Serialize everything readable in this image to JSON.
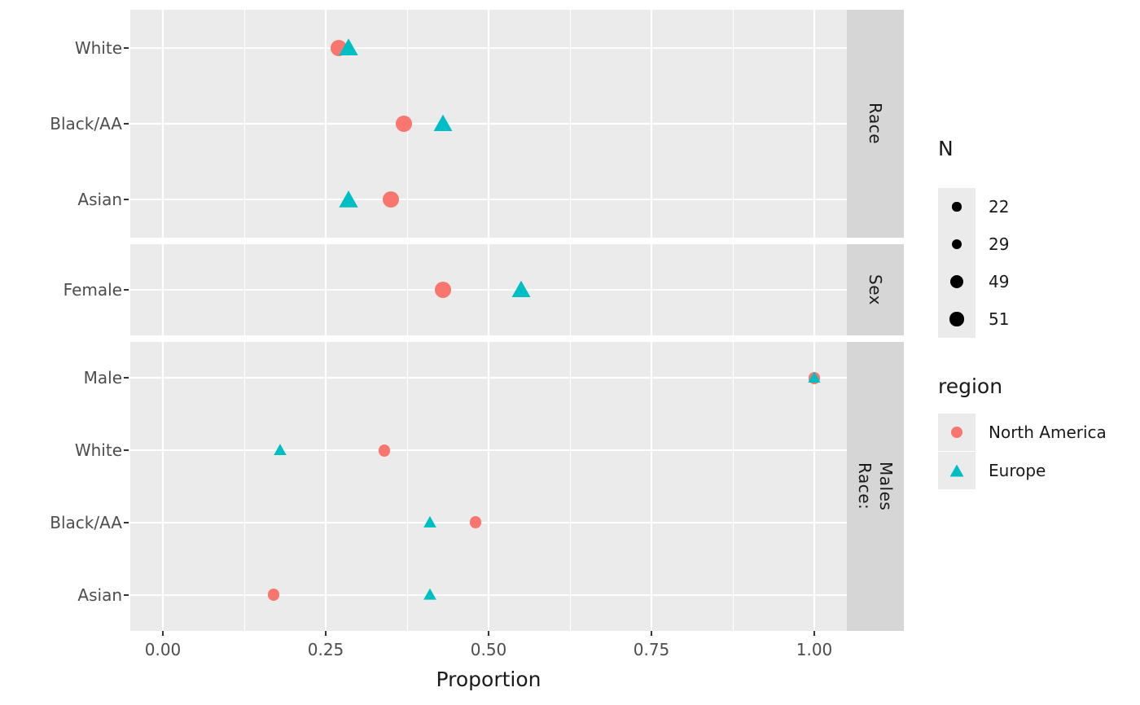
{
  "chart_data": {
    "type": "scatter",
    "title": "",
    "xlabel": "Proportion",
    "ylabel": "",
    "x_range": [
      0,
      1
    ],
    "x_ticks": [
      {
        "value": 0.0,
        "label": "0.00"
      },
      {
        "value": 0.25,
        "label": "0.25"
      },
      {
        "value": 0.5,
        "label": "0.50"
      },
      {
        "value": 0.75,
        "label": "0.75"
      },
      {
        "value": 1.0,
        "label": "1.00"
      }
    ],
    "x_minor_ticks": [
      0.125,
      0.375,
      0.625,
      0.875
    ],
    "grid": true,
    "facets": [
      {
        "label": "Race",
        "label_lines": [
          "Race"
        ],
        "rows": [
          "White",
          "Black/AA",
          "Asian"
        ],
        "points": [
          {
            "row": "White",
            "region": "North America",
            "value": 0.27,
            "n": 51
          },
          {
            "row": "White",
            "region": "Europe",
            "value": 0.285,
            "n": 49
          },
          {
            "row": "Black/AA",
            "region": "North America",
            "value": 0.37,
            "n": 51
          },
          {
            "row": "Black/AA",
            "region": "Europe",
            "value": 0.43,
            "n": 49
          },
          {
            "row": "Asian",
            "region": "North America",
            "value": 0.35,
            "n": 51
          },
          {
            "row": "Asian",
            "region": "Europe",
            "value": 0.285,
            "n": 49
          }
        ]
      },
      {
        "label": "Sex",
        "label_lines": [
          "Sex"
        ],
        "rows": [
          "Female"
        ],
        "points": [
          {
            "row": "Female",
            "region": "North America",
            "value": 0.43,
            "n": 51
          },
          {
            "row": "Female",
            "region": "Europe",
            "value": 0.55,
            "n": 49
          }
        ]
      },
      {
        "label": "Race: Males",
        "label_lines": [
          "Race:",
          "Males"
        ],
        "rows": [
          "Male",
          "White",
          "Black/AA",
          "Asian"
        ],
        "points": [
          {
            "row": "Male",
            "region": "North America",
            "value": 1.0,
            "n": 29
          },
          {
            "row": "Male",
            "region": "Europe",
            "value": 1.0,
            "n": 22
          },
          {
            "row": "White",
            "region": "North America",
            "value": 0.34,
            "n": 29
          },
          {
            "row": "White",
            "region": "Europe",
            "value": 0.18,
            "n": 22
          },
          {
            "row": "Black/AA",
            "region": "North America",
            "value": 0.48,
            "n": 29
          },
          {
            "row": "Black/AA",
            "region": "Europe",
            "value": 0.41,
            "n": 22
          },
          {
            "row": "Asian",
            "region": "North America",
            "value": 0.17,
            "n": 29
          },
          {
            "row": "Asian",
            "region": "Europe",
            "value": 0.41,
            "n": 22
          }
        ]
      }
    ],
    "legends": {
      "size": {
        "title": "N",
        "values": [
          22,
          29,
          49,
          51
        ],
        "dot_color": "#000000"
      },
      "region": {
        "title": "region",
        "items": [
          {
            "label": "North America",
            "color": "#F8766D",
            "shape": "circle"
          },
          {
            "label": "Europe",
            "color": "#00BFC4",
            "shape": "triangle"
          }
        ]
      }
    },
    "colors": {
      "panel_bg": "#EBEBEB",
      "strip_bg": "#D6D6D6",
      "grid": "#FFFFFF",
      "axis_text": "#4D4D4D",
      "north_america": "#F8766D",
      "europe": "#00BFC4"
    }
  }
}
